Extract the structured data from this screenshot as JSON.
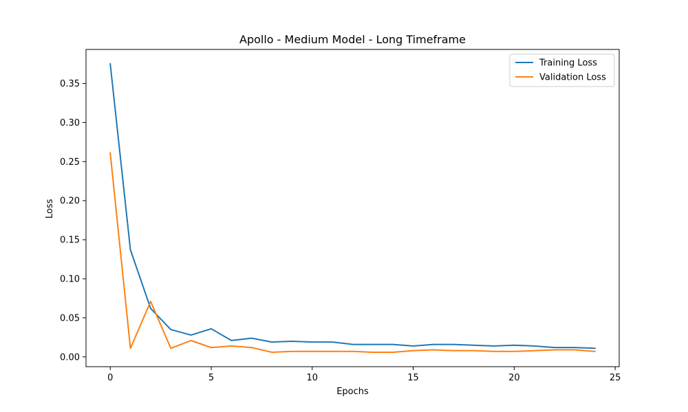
{
  "chart_data": {
    "type": "line",
    "title": "Apollo - Medium Model - Long Timeframe",
    "xlabel": "Epochs",
    "ylabel": "Loss",
    "xlim": [
      -1.2,
      25.2
    ],
    "ylim": [
      -0.0125,
      0.3935
    ],
    "xticks": [
      0,
      5,
      10,
      15,
      20,
      25
    ],
    "yticks": [
      0.0,
      0.05,
      0.1,
      0.15,
      0.2,
      0.25,
      0.3,
      0.35
    ],
    "xtick_labels": [
      "0",
      "5",
      "10",
      "15",
      "20",
      "25"
    ],
    "ytick_labels": [
      "0.00",
      "0.05",
      "0.10",
      "0.15",
      "0.20",
      "0.25",
      "0.30",
      "0.35"
    ],
    "grid": false,
    "legend_position": "top-right",
    "x": [
      0,
      1,
      2,
      3,
      4,
      5,
      6,
      7,
      8,
      9,
      10,
      11,
      12,
      13,
      14,
      15,
      16,
      17,
      18,
      19,
      20,
      21,
      22,
      23,
      24
    ],
    "series": [
      {
        "name": "Training Loss",
        "color": "#1f77b4",
        "values": [
          0.375,
          0.137,
          0.062,
          0.035,
          0.028,
          0.036,
          0.021,
          0.024,
          0.019,
          0.02,
          0.019,
          0.019,
          0.016,
          0.016,
          0.016,
          0.014,
          0.016,
          0.016,
          0.015,
          0.014,
          0.015,
          0.014,
          0.012,
          0.012,
          0.011
        ]
      },
      {
        "name": "Validation Loss",
        "color": "#ff7f0e",
        "values": [
          0.261,
          0.011,
          0.071,
          0.011,
          0.021,
          0.012,
          0.014,
          0.012,
          0.006,
          0.007,
          0.007,
          0.007,
          0.007,
          0.006,
          0.006,
          0.008,
          0.009,
          0.008,
          0.008,
          0.007,
          0.007,
          0.008,
          0.009,
          0.009,
          0.007
        ]
      }
    ]
  }
}
